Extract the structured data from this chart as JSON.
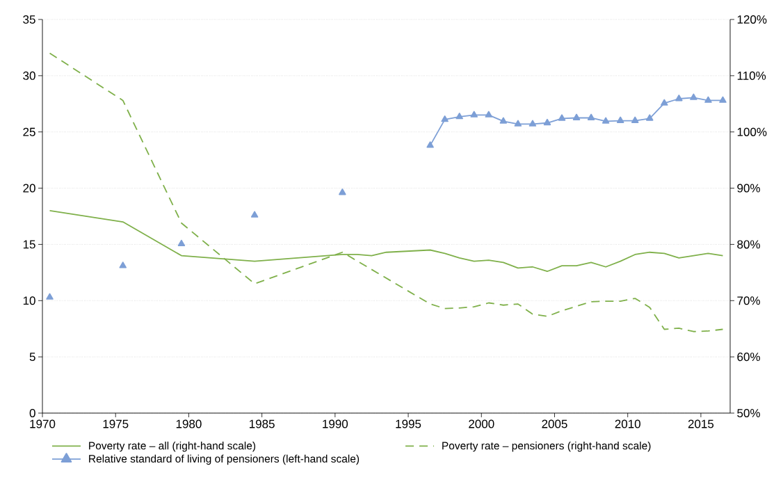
{
  "chart_data": {
    "type": "line",
    "xlim": [
      1970,
      2017
    ],
    "xticks": [
      1970,
      1975,
      1980,
      1985,
      1990,
      1995,
      2000,
      2005,
      2010,
      2015
    ],
    "ylim": [
      0,
      35
    ],
    "yticks": [
      0,
      5,
      10,
      15,
      20,
      25,
      30,
      35
    ],
    "y2lim": [
      50,
      120
    ],
    "y2ticks": [
      {
        "value": 50,
        "label": "50%"
      },
      {
        "value": 60,
        "label": "60%"
      },
      {
        "value": 70,
        "label": "70%"
      },
      {
        "value": 80,
        "label": "80%"
      },
      {
        "value": 90,
        "label": "90%"
      },
      {
        "value": 100,
        "label": "100%"
      },
      {
        "value": 110,
        "label": "110%"
      },
      {
        "value": 120,
        "label": "120%"
      }
    ],
    "grid": "y",
    "legend": "bottom",
    "series": [
      {
        "name": "Poverty rate – all (right-hand scale)",
        "color": "#7fb04a",
        "line_style": "solid",
        "marker": "none",
        "x": [
          1970.5,
          1975.5,
          1979.5,
          1984.5,
          1990.5,
          1991.5,
          1992.5,
          1993.5,
          1996.5,
          1997.5,
          1998.5,
          1999.5,
          2000.5,
          2001.5,
          2002.5,
          2003.5,
          2004.5,
          2005.5,
          2006.5,
          2007.5,
          2008.5,
          2009.5,
          2010.5,
          2011.5,
          2012.5,
          2013.5,
          2014.5,
          2015.5,
          2016.5
        ],
        "values": [
          18.0,
          17.0,
          14.0,
          13.5,
          14.1,
          14.1,
          14.0,
          14.3,
          14.5,
          14.2,
          13.8,
          13.5,
          13.6,
          13.4,
          12.9,
          13.0,
          12.6,
          13.1,
          13.1,
          13.4,
          13.0,
          13.5,
          14.1,
          14.3,
          14.2,
          13.8,
          14.0,
          14.2,
          14.0
        ]
      },
      {
        "name": "Poverty rate – pensioners (right-hand scale)",
        "color": "#7fb04a",
        "line_style": "dashed",
        "marker": "none",
        "x": [
          1970.5,
          1975.5,
          1979.5,
          1984.5,
          1990.5,
          1996.5,
          1997.5,
          1998.5,
          1999.5,
          2000.5,
          2001.5,
          2002.5,
          2003.5,
          2004.5,
          2005.5,
          2006.5,
          2007.5,
          2008.5,
          2009.5,
          2010.5,
          2011.5,
          2012.5,
          2013.5,
          2014.5,
          2015.5,
          2016.5
        ],
        "values": [
          32.0,
          27.8,
          16.9,
          11.5,
          14.3,
          9.7,
          9.3,
          9.35,
          9.45,
          9.8,
          9.6,
          9.7,
          8.8,
          8.6,
          9.1,
          9.5,
          9.9,
          9.95,
          9.95,
          10.2,
          9.4,
          7.45,
          7.55,
          7.25,
          7.3,
          7.45
        ]
      },
      {
        "name": "Relative standard of living of pensioners (left-hand scale)",
        "color": "#7d9fd6",
        "line_style": "solid",
        "marker": "triangle",
        "axis": "y2",
        "x": [
          1970.5,
          1973,
          1975.5,
          1977.5,
          1979.5,
          1982,
          1984.5,
          1987.5,
          1990.5,
          1993.5,
          1996.5,
          1997.5,
          1998.5,
          1999.5,
          2000.5,
          2001.5,
          2002.5,
          2003.5,
          2004.5,
          2005.5,
          2006.5,
          2007.5,
          2008.5,
          2009.5,
          2010.5,
          2011.5,
          2012.5,
          2013.5,
          2014.5,
          2015.5,
          2016.5
        ],
        "values": [
          70.6,
          null,
          76.2,
          null,
          80.1,
          null,
          85.2,
          null,
          89.2,
          null,
          97.6,
          102.2,
          102.7,
          103.0,
          103.0,
          101.9,
          101.4,
          101.4,
          101.6,
          102.4,
          102.5,
          102.5,
          101.9,
          102.0,
          102.0,
          102.4,
          105.1,
          105.9,
          106.1,
          105.6,
          105.6
        ]
      }
    ]
  }
}
